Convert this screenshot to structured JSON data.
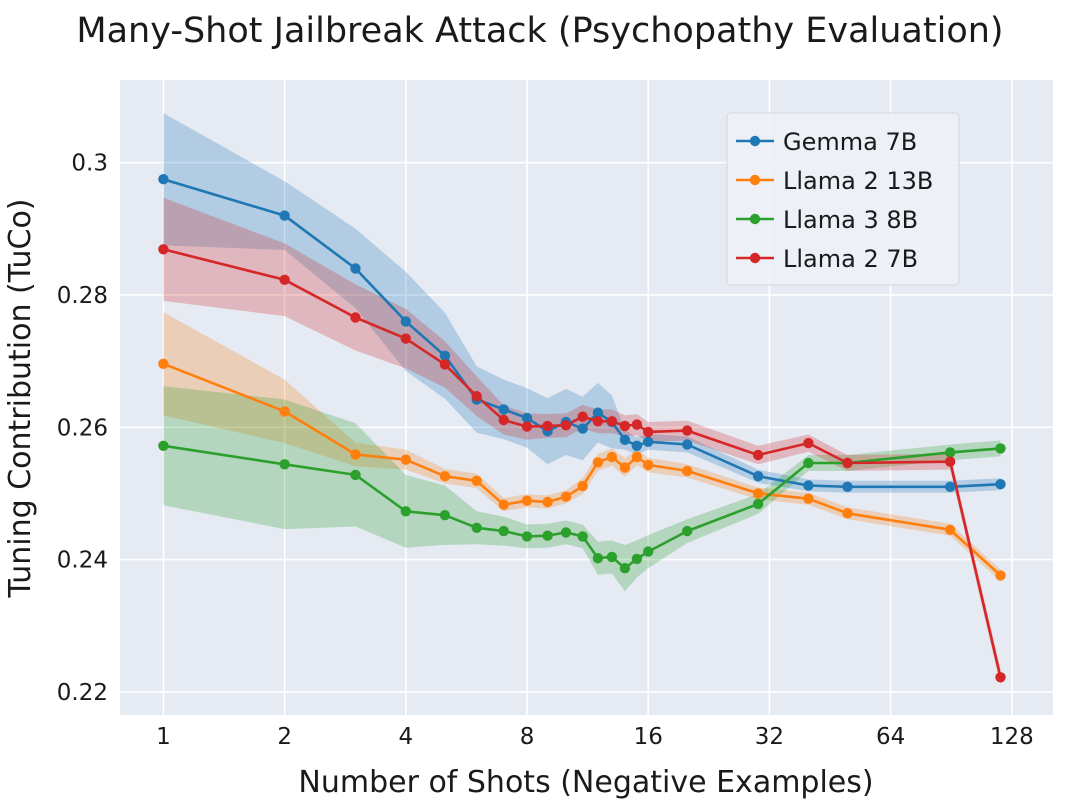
{
  "chart_data": {
    "type": "line",
    "title": "Many-Shot Jailbreak Attack (Psychopathy Evaluation)",
    "xlabel": "Number of Shots (Negative Examples)",
    "ylabel": "Tuning Contribution (TuCo)",
    "xscale": "log2",
    "xlim": [
      0.78,
      162
    ],
    "ylim": [
      0.2165,
      0.3125
    ],
    "xticks": [
      1,
      2,
      4,
      8,
      16,
      32,
      64,
      128
    ],
    "xtick_labels": [
      "1",
      "2",
      "4",
      "8",
      "16",
      "32",
      "64",
      "128"
    ],
    "yticks": [
      0.22,
      0.24,
      0.26,
      0.28,
      0.3
    ],
    "ytick_labels": [
      "0.22",
      "0.24",
      "0.26",
      "0.28",
      "0.3"
    ],
    "grid": true,
    "legend_position": "top-right",
    "series": [
      {
        "name": "Gemma 7B",
        "color": "#1f77b4",
        "x": [
          1,
          2,
          3,
          4,
          5,
          6,
          7,
          8,
          9,
          10,
          11,
          12,
          13,
          14,
          15,
          16,
          20,
          30,
          40,
          50,
          90,
          120
        ],
        "y": [
          0.2975,
          0.292,
          0.284,
          0.276,
          0.2708,
          0.2642,
          0.2627,
          0.2614,
          0.2594,
          0.2608,
          0.2598,
          0.2622,
          0.2608,
          0.2581,
          0.2572,
          0.2578,
          0.2574,
          0.2526,
          0.2512,
          0.251,
          0.251,
          0.2514
        ],
        "band": [
          0.01,
          0.0052,
          0.006,
          0.0075,
          0.0065,
          0.005,
          0.0045,
          0.0045,
          0.005,
          0.005,
          0.0048,
          0.0045,
          0.004,
          0.0015,
          0.0013,
          0.0012,
          0.0012,
          0.001,
          0.0009,
          0.0009,
          0.0009,
          0.0009
        ]
      },
      {
        "name": "Llama 2 13B",
        "color": "#ff7f0e",
        "x": [
          1,
          2,
          3,
          4,
          5,
          6,
          7,
          8,
          9,
          10,
          11,
          12,
          13,
          14,
          15,
          16,
          20,
          30,
          40,
          50,
          90,
          120
        ],
        "y": [
          0.2696,
          0.2624,
          0.2559,
          0.2551,
          0.2526,
          0.2519,
          0.2483,
          0.2489,
          0.2487,
          0.2495,
          0.2511,
          0.2547,
          0.2555,
          0.2539,
          0.2555,
          0.2543,
          0.2534,
          0.25,
          0.2492,
          0.247,
          0.2445,
          0.2376
        ],
        "band": [
          0.0078,
          0.0048,
          0.0018,
          0.0015,
          0.0011,
          0.0011,
          0.001,
          0.001,
          0.001,
          0.001,
          0.0012,
          0.0013,
          0.0013,
          0.0014,
          0.0012,
          0.0011,
          0.001,
          0.0009,
          0.0009,
          0.0009,
          0.0009,
          0.0009
        ]
      },
      {
        "name": "Llama 3 8B",
        "color": "#2ca02c",
        "x": [
          1,
          2,
          3,
          4,
          5,
          6,
          7,
          8,
          9,
          10,
          11,
          12,
          13,
          14,
          15,
          16,
          20,
          30,
          40,
          50,
          90,
          120
        ],
        "y": [
          0.2572,
          0.2544,
          0.2528,
          0.2473,
          0.2467,
          0.2448,
          0.2443,
          0.2435,
          0.2436,
          0.2441,
          0.2435,
          0.2402,
          0.2404,
          0.2387,
          0.2401,
          0.2412,
          0.2443,
          0.2484,
          0.2546,
          0.2546,
          0.2562,
          0.2568
        ],
        "band": [
          0.009,
          0.0098,
          0.0078,
          0.0055,
          0.0045,
          0.0025,
          0.0022,
          0.0018,
          0.0018,
          0.0018,
          0.0018,
          0.0025,
          0.0025,
          0.0035,
          0.0028,
          0.0025,
          0.0018,
          0.0015,
          0.0012,
          0.0012,
          0.0012,
          0.0012
        ]
      },
      {
        "name": "Llama 2 7B",
        "color": "#d62728",
        "x": [
          1,
          2,
          3,
          4,
          5,
          6,
          7,
          8,
          9,
          10,
          11,
          12,
          13,
          14,
          15,
          16,
          20,
          30,
          40,
          50,
          90,
          120
        ],
        "y": [
          0.2869,
          0.2823,
          0.2766,
          0.2734,
          0.2695,
          0.2647,
          0.2611,
          0.2601,
          0.2602,
          0.2603,
          0.2616,
          0.2609,
          0.2609,
          0.2602,
          0.2604,
          0.2593,
          0.2595,
          0.2558,
          0.2576,
          0.2546,
          0.2548,
          0.2222
        ],
        "band": [
          0.0078,
          0.0055,
          0.005,
          0.0045,
          0.0035,
          0.003,
          0.0022,
          0.002,
          0.0018,
          0.0018,
          0.0018,
          0.0018,
          0.0018,
          0.0016,
          0.0016,
          0.0015,
          0.0015,
          0.0014,
          0.0013,
          0.0012,
          0.0012,
          0.0012
        ]
      }
    ]
  }
}
